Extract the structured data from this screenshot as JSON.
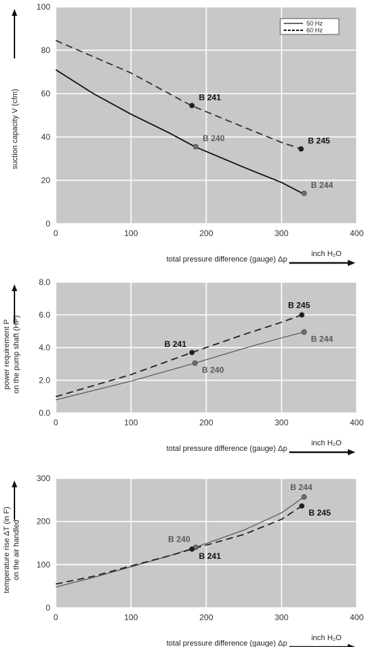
{
  "chart_data": [
    {
      "type": "line",
      "ylabel": "suction capacity V (cfm)",
      "xlabel": "total pressure difference (gauge)  Δp",
      "unit_label": "inch H₂O",
      "xlim": [
        0,
        400
      ],
      "ylim": [
        0,
        100
      ],
      "xticks": [
        "0",
        "100",
        "200",
        "300",
        "400"
      ],
      "yticks": [
        "0",
        "20",
        "40",
        "60",
        "80",
        "100"
      ],
      "grid": true,
      "legend": {
        "placement": "top-right",
        "entries": [
          "50 Hz",
          "60 Hz"
        ]
      },
      "series": [
        {
          "name": "50 Hz",
          "style": "solid",
          "color": "#111111",
          "x": [
            0,
            50,
            100,
            150,
            185,
            250,
            300,
            328
          ],
          "y": [
            71,
            60,
            50.5,
            42,
            35.5,
            26,
            19,
            14
          ]
        },
        {
          "name": "60 Hz",
          "style": "dashed",
          "color": "#333333",
          "x": [
            0,
            50,
            100,
            180,
            250,
            300,
            326
          ],
          "y": [
            84.5,
            77,
            69.5,
            54.5,
            44.5,
            37.5,
            34.5
          ]
        }
      ],
      "points": [
        {
          "label": "B 241",
          "x": 181,
          "y": 54.5,
          "dark": true,
          "label_side": "right-up"
        },
        {
          "label": "B 240",
          "x": 186,
          "y": 35.5,
          "dark": false,
          "label_side": "right-up"
        },
        {
          "label": "B 245",
          "x": 326,
          "y": 34.5,
          "dark": true,
          "label_side": "right-up"
        },
        {
          "label": "B 244",
          "x": 330,
          "y": 14,
          "dark": false,
          "label_side": "right-up"
        }
      ]
    },
    {
      "type": "line",
      "ylabel": "power requirement P\non the pump shaft (HP)",
      "xlabel": "total pressure difference (gauge)  Δp",
      "unit_label": "inch H₂O",
      "xlim": [
        0,
        400
      ],
      "ylim": [
        0,
        8
      ],
      "xticks": [
        "0",
        "100",
        "200",
        "300",
        "400"
      ],
      "yticks": [
        "0.0",
        "2.0",
        "4.0",
        "6.0",
        "8.0"
      ],
      "grid": true,
      "series": [
        {
          "name": "",
          "style": "solid",
          "color": "#555555",
          "x": [
            0,
            100,
            185,
            250,
            300,
            330
          ],
          "y": [
            0.8,
            1.95,
            3.05,
            3.95,
            4.6,
            4.95
          ]
        },
        {
          "name": "",
          "style": "dashed",
          "color": "#222222",
          "x": [
            0,
            100,
            181,
            250,
            300,
            327
          ],
          "y": [
            1.0,
            2.35,
            3.7,
            4.8,
            5.55,
            6.0
          ]
        }
      ],
      "points": [
        {
          "label": "B 241",
          "x": 181,
          "y": 3.7,
          "dark": true,
          "label_side": "left-up"
        },
        {
          "label": "B 240",
          "x": 185,
          "y": 3.05,
          "dark": false,
          "label_side": "right-down"
        },
        {
          "label": "B 245",
          "x": 327,
          "y": 6.0,
          "dark": true,
          "label_side": "up"
        },
        {
          "label": "B 244",
          "x": 330,
          "y": 4.95,
          "dark": false,
          "label_side": "right-down"
        }
      ]
    },
    {
      "type": "line",
      "ylabel": "temperature rise ΔT  (in F)\non the air handled",
      "xlabel": "total pressure difference (gauge)  Δp",
      "unit_label": "inch H₂O",
      "xlim": [
        0,
        400
      ],
      "ylim": [
        0,
        300
      ],
      "xticks": [
        "0",
        "100",
        "200",
        "300",
        "400"
      ],
      "yticks": [
        "0",
        "100",
        "200",
        "300"
      ],
      "grid": true,
      "series": [
        {
          "name": "",
          "style": "solid",
          "color": "#555555",
          "x": [
            0,
            50,
            100,
            150,
            185,
            250,
            300,
            330
          ],
          "y": [
            48,
            70,
            95,
            120,
            140,
            180,
            220,
            257
          ]
        },
        {
          "name": "",
          "style": "dashed",
          "color": "#222222",
          "x": [
            0,
            50,
            100,
            150,
            181,
            250,
            300,
            327
          ],
          "y": [
            55,
            73,
            97,
            120,
            136,
            170,
            205,
            236
          ]
        }
      ],
      "points": [
        {
          "label": "B 240",
          "x": 186,
          "y": 140,
          "dark": false,
          "label_side": "left-up"
        },
        {
          "label": "B 241",
          "x": 181,
          "y": 136,
          "dark": true,
          "label_side": "right-down"
        },
        {
          "label": "B 244",
          "x": 330,
          "y": 257,
          "dark": false,
          "label_side": "up"
        },
        {
          "label": "B 245",
          "x": 327,
          "y": 236,
          "dark": true,
          "label_side": "right-down"
        }
      ]
    }
  ],
  "colors": {
    "plot_bg": "#c8c8ca",
    "grid": "#ffffff",
    "dark_point": "#1e1e1e",
    "light_point": "#6e6e6e",
    "dark_label": "#111111",
    "light_label": "#5a5a5a"
  }
}
